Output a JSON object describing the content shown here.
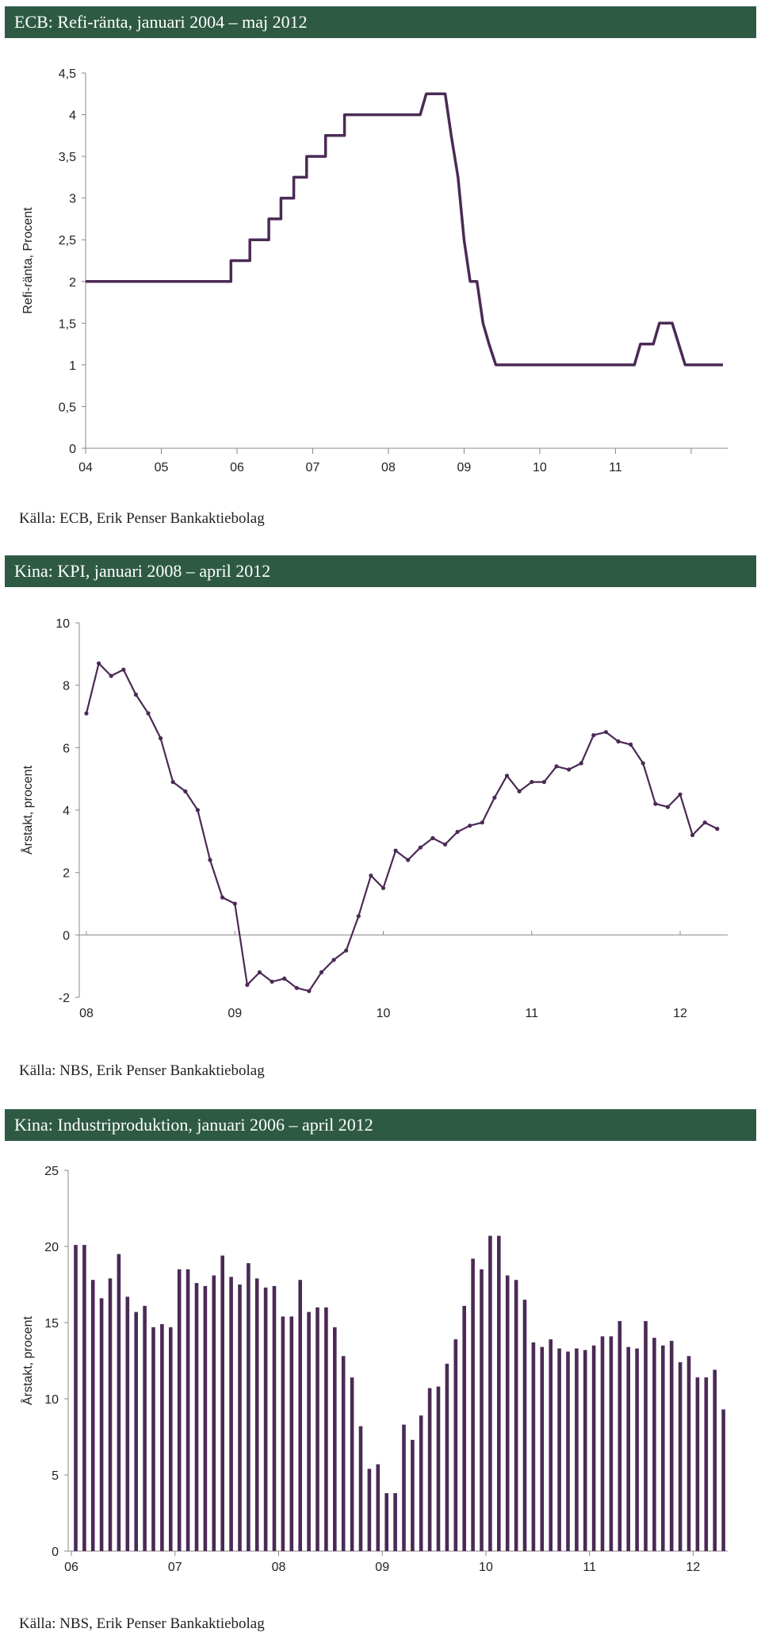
{
  "colors": {
    "banner": "#2e5a44",
    "series": "#4b2a55",
    "axis": "#888888"
  },
  "charts": [
    {
      "banner": "ECB: Refi-ränta, januari 2004 – maj 2012",
      "source": "Källa: ECB, Erik Penser Bankaktiebolag"
    },
    {
      "banner": "Kina: KPI, januari 2008 – april 2012",
      "source": "Källa: NBS, Erik Penser Bankaktiebolag"
    },
    {
      "banner": "Kina: Industriproduktion, januari 2006 – april 2012",
      "source": "Källa: NBS, Erik Penser Bankaktiebolag"
    }
  ],
  "chart_data": [
    {
      "type": "line",
      "title": "ECB: Refi-ränta, januari 2004 – maj 2012",
      "ylabel": "Refi-ränta, Procent",
      "xlabel": "",
      "ylim": [
        0,
        4.5
      ],
      "yticks": [
        "0",
        "0,5",
        "1",
        "1,5",
        "2",
        "2,5",
        "3",
        "3,5",
        "4",
        "4,5"
      ],
      "xticks": [
        "04",
        "05",
        "06",
        "07",
        "08",
        "09",
        "10",
        "11"
      ],
      "xrange": [
        2004.0,
        2012.42
      ],
      "series": [
        {
          "name": "",
          "x": [
            2004.0,
            2005.92,
            2005.92,
            2006.17,
            2006.17,
            2006.42,
            2006.42,
            2006.58,
            2006.58,
            2006.75,
            2006.75,
            2006.92,
            2006.92,
            2007.17,
            2007.17,
            2007.42,
            2007.42,
            2008.42,
            2008.5,
            2008.75,
            2008.83,
            2008.92,
            2009.0,
            2009.08,
            2009.17,
            2009.25,
            2009.33,
            2009.42,
            2011.25,
            2011.33,
            2011.5,
            2011.58,
            2011.75,
            2011.92,
            2012.42
          ],
          "y": [
            2.0,
            2.0,
            2.25,
            2.25,
            2.5,
            2.5,
            2.75,
            2.75,
            3.0,
            3.0,
            3.25,
            3.25,
            3.5,
            3.5,
            3.75,
            3.75,
            4.0,
            4.0,
            4.25,
            4.25,
            3.75,
            3.25,
            2.5,
            2.0,
            2.0,
            1.5,
            1.25,
            1.0,
            1.0,
            1.25,
            1.25,
            1.5,
            1.5,
            1.0,
            1.0
          ]
        }
      ]
    },
    {
      "type": "line",
      "title": "Kina: KPI, januari 2008 – april 2012",
      "ylabel": "Årstakt, procent",
      "xlabel": "",
      "ylim": [
        -2,
        10
      ],
      "yticks": [
        "-2",
        "0",
        "2",
        "4",
        "6",
        "8",
        "10"
      ],
      "xticks": [
        "08",
        "09",
        "10",
        "11",
        "12"
      ],
      "xrange": [
        2008.0,
        2012.25
      ],
      "series": [
        {
          "name": "",
          "x_start": "2008-01",
          "values": [
            7.1,
            8.7,
            8.3,
            8.5,
            7.7,
            7.1,
            6.3,
            4.9,
            4.6,
            4.0,
            2.4,
            1.2,
            1.0,
            -1.6,
            -1.2,
            -1.5,
            -1.4,
            -1.7,
            -1.8,
            -1.2,
            -0.8,
            -0.5,
            0.6,
            1.9,
            1.5,
            2.7,
            2.4,
            2.8,
            3.1,
            2.9,
            3.3,
            3.5,
            3.6,
            4.4,
            5.1,
            4.6,
            4.9,
            4.9,
            5.4,
            5.3,
            5.5,
            6.4,
            6.5,
            6.2,
            6.1,
            5.5,
            4.2,
            4.1,
            4.5,
            3.2,
            3.6,
            3.4
          ]
        }
      ]
    },
    {
      "type": "bar",
      "title": "Kina: Industriproduktion, januari 2006 – april 2012",
      "ylabel": "Årstakt, procent",
      "xlabel": "",
      "ylim": [
        0,
        25
      ],
      "yticks": [
        "0",
        "5",
        "10",
        "15",
        "20",
        "25"
      ],
      "xticks": [
        "06",
        "07",
        "08",
        "09",
        "10",
        "11",
        "12"
      ],
      "series": [
        {
          "name": "",
          "x_start": "2006-01",
          "values": [
            20.1,
            20.1,
            17.8,
            16.6,
            17.9,
            19.5,
            16.7,
            15.7,
            16.1,
            14.7,
            14.9,
            14.7,
            18.5,
            18.5,
            17.6,
            17.4,
            18.1,
            19.4,
            18.0,
            17.5,
            18.9,
            17.9,
            17.3,
            17.4,
            15.4,
            15.4,
            17.8,
            15.7,
            16.0,
            16.0,
            14.7,
            12.8,
            11.4,
            8.2,
            5.4,
            5.7,
            3.8,
            3.8,
            8.3,
            7.3,
            8.9,
            10.7,
            10.8,
            12.3,
            13.9,
            16.1,
            19.2,
            18.5,
            20.7,
            20.7,
            18.1,
            17.8,
            16.5,
            13.7,
            13.4,
            13.9,
            13.3,
            13.1,
            13.3,
            13.2,
            13.5,
            14.1,
            14.1,
            15.1,
            13.4,
            13.3,
            15.1,
            14.0,
            13.5,
            13.8,
            12.4,
            12.8,
            11.4,
            11.4,
            11.9,
            9.3
          ]
        }
      ]
    }
  ]
}
